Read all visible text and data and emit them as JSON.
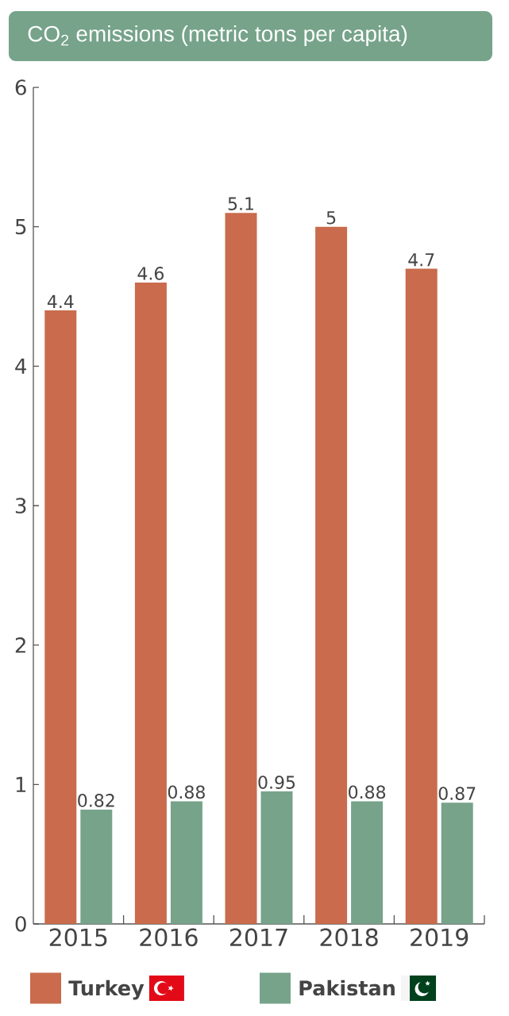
{
  "chart_data": {
    "type": "bar",
    "title": "CO$_{2}$ emissions (metric tons per capita)",
    "categories": [
      "2015",
      "2016",
      "2017",
      "2018",
      "2019"
    ],
    "series": [
      {
        "name": "Turkey",
        "color": "#c96b4c",
        "values": [
          4.4,
          4.6,
          5.1,
          5,
          4.7
        ]
      },
      {
        "name": "Pakistan",
        "color": "#76a38a",
        "values": [
          0.82,
          0.88,
          0.95,
          0.88,
          0.87
        ]
      }
    ],
    "ylim": [
      0,
      6
    ],
    "yticks": [
      0,
      1,
      2,
      3,
      4,
      5,
      6
    ],
    "data_labels": true,
    "legend": "bottom"
  }
}
